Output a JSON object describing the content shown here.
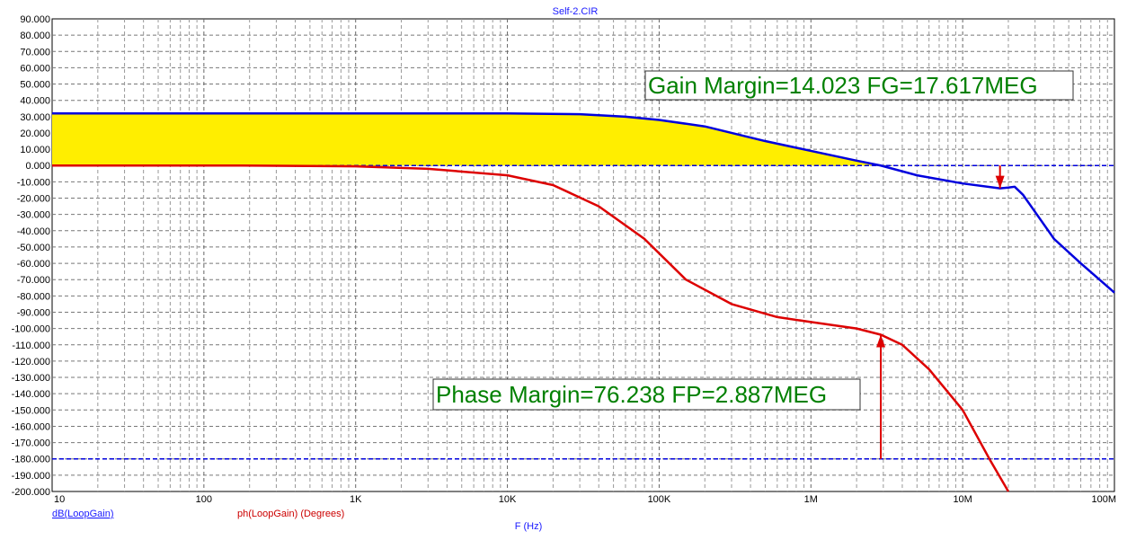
{
  "chart_data": {
    "type": "line",
    "title": "Self-2.CIR",
    "xlabel": "F (Hz)",
    "x_scale": "log",
    "xlim": [
      10,
      100000000
    ],
    "ylim": [
      -200,
      90
    ],
    "grid": true,
    "y_ticks": [
      "90.000",
      "80.000",
      "70.000",
      "60.000",
      "50.000",
      "40.000",
      "30.000",
      "20.000",
      "10.000",
      "0.000",
      "-10.000",
      "-20.000",
      "-30.000",
      "-40.000",
      "-50.000",
      "-60.000",
      "-70.000",
      "-80.000",
      "-90.000",
      "-100.000",
      "-110.000",
      "-120.000",
      "-130.000",
      "-140.000",
      "-150.000",
      "-160.000",
      "-170.000",
      "-180.000",
      "-190.000",
      "-200.000"
    ],
    "x_ticks": [
      {
        "v": 10,
        "label": "10"
      },
      {
        "v": 100,
        "label": "100"
      },
      {
        "v": 1000,
        "label": "1K"
      },
      {
        "v": 10000,
        "label": "10K"
      },
      {
        "v": 100000,
        "label": "100K"
      },
      {
        "v": 1000000,
        "label": "1M"
      },
      {
        "v": 10000000,
        "label": "10M"
      },
      {
        "v": 100000000,
        "label": "100M"
      }
    ],
    "series": [
      {
        "name": "dB(LoopGain)",
        "color": "#0000dd",
        "fill_above_zero": "#ffee00",
        "x": [
          10,
          1000,
          10000,
          30000,
          60000,
          100000,
          200000,
          500000,
          1000000,
          2000000,
          2887000,
          5000000,
          10000000,
          17617000,
          20000000,
          22000000,
          25000000,
          40000000,
          60000000,
          100000000
        ],
        "y": [
          32,
          32,
          32,
          31.5,
          30,
          28,
          24,
          15,
          9,
          3,
          0,
          -6,
          -11,
          -14,
          -13.5,
          -13,
          -18,
          -45,
          -60,
          -78
        ]
      },
      {
        "name": "ph(LoopGain) (Degrees)",
        "color": "#dd0000",
        "x": [
          10,
          180,
          1000,
          3000,
          10000,
          20000,
          40000,
          80000,
          150000,
          300000,
          600000,
          1000000,
          2000000,
          2887000,
          4000000,
          6000000,
          10000000,
          15000000,
          20000000
        ],
        "y": [
          0,
          0,
          -0.5,
          -2,
          -6,
          -12,
          -25,
          -45,
          -70,
          -85,
          -93,
          -96,
          -100,
          -103.8,
          -110,
          -125,
          -150,
          -180,
          -200
        ]
      }
    ],
    "reference_lines": [
      {
        "y": 0,
        "color": "#0000dd",
        "style": "dashed"
      },
      {
        "y": -180,
        "color": "#0000dd",
        "style": "dashed"
      }
    ],
    "markers": [
      {
        "type": "arrow-down",
        "x": 17617000,
        "y_from": 0,
        "y_to": -14,
        "color": "#dd0000"
      },
      {
        "type": "arrow-up",
        "x": 2887000,
        "y_from": -180,
        "y_to": -103.8,
        "color": "#dd0000"
      }
    ],
    "annotations": [
      {
        "text": "Gain Margin=14.023 FG=17.617MEG"
      },
      {
        "text": "Phase Margin=76.238 FP=2.887MEG"
      }
    ]
  }
}
